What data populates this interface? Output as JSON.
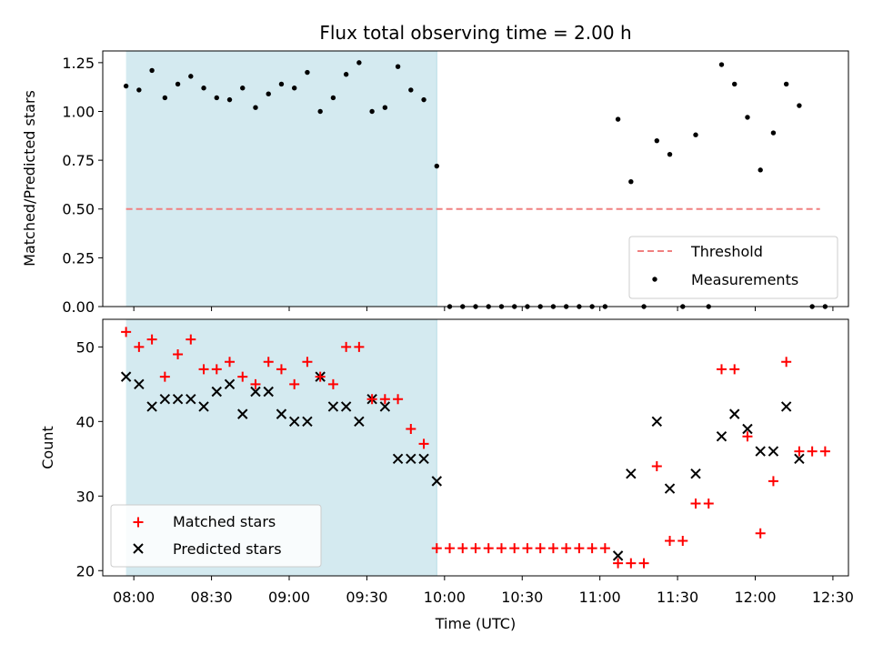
{
  "chart_data": [
    {
      "type": "scatter",
      "title": "Flux total observing time = 2.00 h",
      "ylabel": "Matched/Predicted stars",
      "xlim": [
        "07:48",
        "12:36"
      ],
      "ylim": [
        0,
        1.31
      ],
      "yticks": [
        "0.00",
        "0.25",
        "0.50",
        "0.75",
        "1.00",
        "1.25"
      ],
      "shaded_interval": [
        "07:57",
        "09:57"
      ],
      "shade_color": "#d4eaf0",
      "threshold": {
        "name": "Threshold",
        "y": 0.5,
        "x": [
          "07:57",
          "12:25"
        ],
        "color": "#f08080"
      },
      "legend": [
        "Threshold",
        "Measurements"
      ],
      "legend_position": "lower right",
      "series": [
        {
          "name": "Measurements",
          "color": "#000000",
          "points": [
            [
              "07:57",
              1.13
            ],
            [
              "08:02",
              1.11
            ],
            [
              "08:07",
              1.21
            ],
            [
              "08:12",
              1.07
            ],
            [
              "08:17",
              1.14
            ],
            [
              "08:22",
              1.18
            ],
            [
              "08:27",
              1.12
            ],
            [
              "08:32",
              1.07
            ],
            [
              "08:37",
              1.06
            ],
            [
              "08:42",
              1.12
            ],
            [
              "08:47",
              1.02
            ],
            [
              "08:52",
              1.09
            ],
            [
              "08:57",
              1.14
            ],
            [
              "09:02",
              1.12
            ],
            [
              "09:07",
              1.2
            ],
            [
              "09:12",
              1.0
            ],
            [
              "09:17",
              1.07
            ],
            [
              "09:22",
              1.19
            ],
            [
              "09:27",
              1.25
            ],
            [
              "09:32",
              1.0
            ],
            [
              "09:37",
              1.02
            ],
            [
              "09:42",
              1.23
            ],
            [
              "09:47",
              1.11
            ],
            [
              "09:52",
              1.06
            ],
            [
              "09:57",
              0.72
            ],
            [
              "10:02",
              0.0
            ],
            [
              "10:07",
              0.0
            ],
            [
              "10:12",
              0.0
            ],
            [
              "10:17",
              0.0
            ],
            [
              "10:22",
              0.0
            ],
            [
              "10:27",
              0.0
            ],
            [
              "10:32",
              0.0
            ],
            [
              "10:37",
              0.0
            ],
            [
              "10:42",
              0.0
            ],
            [
              "10:47",
              0.0
            ],
            [
              "10:52",
              0.0
            ],
            [
              "10:57",
              0.0
            ],
            [
              "11:02",
              0.0
            ],
            [
              "11:07",
              0.96
            ],
            [
              "11:12",
              0.64
            ],
            [
              "11:17",
              0.0
            ],
            [
              "11:22",
              0.85
            ],
            [
              "11:27",
              0.78
            ],
            [
              "11:32",
              0.0
            ],
            [
              "11:37",
              0.88
            ],
            [
              "11:42",
              0.0
            ],
            [
              "11:47",
              1.24
            ],
            [
              "11:52",
              1.14
            ],
            [
              "11:57",
              0.97
            ],
            [
              "12:02",
              0.7
            ],
            [
              "12:07",
              0.89
            ],
            [
              "12:12",
              1.14
            ],
            [
              "12:17",
              1.03
            ],
            [
              "12:22",
              0.0
            ],
            [
              "12:27",
              0.0
            ]
          ]
        }
      ]
    },
    {
      "type": "scatter",
      "xlabel": "Time (UTC)",
      "ylabel": "Count",
      "xlim": [
        "07:48",
        "12:36"
      ],
      "ylim": [
        19.3,
        53.7
      ],
      "xticks": [
        "08:00",
        "08:30",
        "09:00",
        "09:30",
        "10:00",
        "10:30",
        "11:00",
        "11:30",
        "12:00",
        "12:30"
      ],
      "yticks": [
        "20",
        "30",
        "40",
        "50"
      ],
      "shaded_interval": [
        "07:57",
        "09:57"
      ],
      "shade_color": "#d4eaf0",
      "legend": [
        "Matched stars",
        "Predicted stars"
      ],
      "legend_position": "lower left",
      "series": [
        {
          "name": "Matched stars",
          "color": "#ff0000",
          "marker": "+",
          "points": [
            [
              "07:57",
              52
            ],
            [
              "08:02",
              50
            ],
            [
              "08:07",
              51
            ],
            [
              "08:12",
              46
            ],
            [
              "08:17",
              49
            ],
            [
              "08:22",
              51
            ],
            [
              "08:27",
              47
            ],
            [
              "08:32",
              47
            ],
            [
              "08:37",
              48
            ],
            [
              "08:42",
              46
            ],
            [
              "08:47",
              45
            ],
            [
              "08:52",
              48
            ],
            [
              "08:57",
              47
            ],
            [
              "09:02",
              45
            ],
            [
              "09:07",
              48
            ],
            [
              "09:12",
              46
            ],
            [
              "09:17",
              45
            ],
            [
              "09:22",
              50
            ],
            [
              "09:27",
              50
            ],
            [
              "09:32",
              43
            ],
            [
              "09:37",
              43
            ],
            [
              "09:42",
              43
            ],
            [
              "09:47",
              39
            ],
            [
              "09:52",
              37
            ],
            [
              "09:57",
              23
            ],
            [
              "10:02",
              23
            ],
            [
              "10:07",
              23
            ],
            [
              "10:12",
              23
            ],
            [
              "10:17",
              23
            ],
            [
              "10:22",
              23
            ],
            [
              "10:27",
              23
            ],
            [
              "10:32",
              23
            ],
            [
              "10:37",
              23
            ],
            [
              "10:42",
              23
            ],
            [
              "10:47",
              23
            ],
            [
              "10:52",
              23
            ],
            [
              "10:57",
              23
            ],
            [
              "11:02",
              23
            ],
            [
              "11:07",
              21
            ],
            [
              "11:12",
              21
            ],
            [
              "11:17",
              21
            ],
            [
              "11:22",
              34
            ],
            [
              "11:27",
              24
            ],
            [
              "11:32",
              24
            ],
            [
              "11:37",
              29
            ],
            [
              "11:42",
              29
            ],
            [
              "11:47",
              47
            ],
            [
              "11:52",
              47
            ],
            [
              "11:57",
              38
            ],
            [
              "12:02",
              25
            ],
            [
              "12:07",
              32
            ],
            [
              "12:12",
              48
            ],
            [
              "12:17",
              36
            ],
            [
              "12:22",
              36
            ],
            [
              "12:27",
              36
            ]
          ]
        },
        {
          "name": "Predicted stars",
          "color": "#000000",
          "marker": "x",
          "points": [
            [
              "07:57",
              46
            ],
            [
              "08:02",
              45
            ],
            [
              "08:07",
              42
            ],
            [
              "08:12",
              43
            ],
            [
              "08:17",
              43
            ],
            [
              "08:22",
              43
            ],
            [
              "08:27",
              42
            ],
            [
              "08:32",
              44
            ],
            [
              "08:37",
              45
            ],
            [
              "08:42",
              41
            ],
            [
              "08:47",
              44
            ],
            [
              "08:52",
              44
            ],
            [
              "08:57",
              41
            ],
            [
              "09:02",
              40
            ],
            [
              "09:07",
              40
            ],
            [
              "09:12",
              46
            ],
            [
              "09:17",
              42
            ],
            [
              "09:22",
              42
            ],
            [
              "09:27",
              40
            ],
            [
              "09:32",
              43
            ],
            [
              "09:37",
              42
            ],
            [
              "09:42",
              35
            ],
            [
              "09:47",
              35
            ],
            [
              "09:52",
              35
            ],
            [
              "09:57",
              32
            ],
            [
              "11:07",
              22
            ],
            [
              "11:12",
              33
            ],
            [
              "11:22",
              40
            ],
            [
              "11:27",
              31
            ],
            [
              "11:37",
              33
            ],
            [
              "11:47",
              38
            ],
            [
              "11:52",
              41
            ],
            [
              "11:57",
              39
            ],
            [
              "12:02",
              36
            ],
            [
              "12:07",
              36
            ],
            [
              "12:12",
              42
            ],
            [
              "12:17",
              35
            ]
          ]
        }
      ]
    }
  ]
}
